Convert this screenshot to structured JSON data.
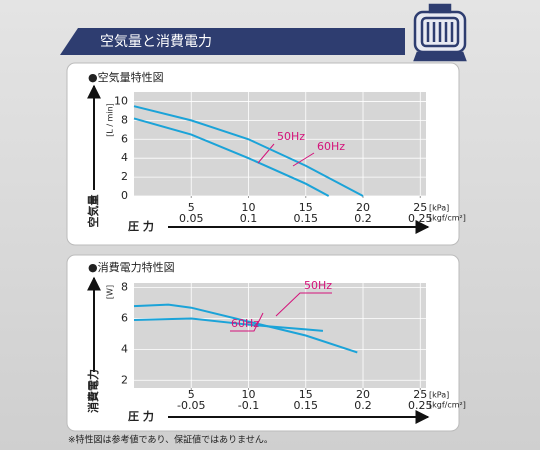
{
  "header": {
    "title": "空気量と消費電力"
  },
  "chart_data": [
    {
      "type": "line",
      "title": "●空気量特性図",
      "y_label": "空気量",
      "y_unit": "[L / min]",
      "x_label": "圧 力",
      "x_unit": "[kPa]",
      "x2_unit": "[kgf/cm²]",
      "xlim": [
        0,
        25.5
      ],
      "xticks": [
        5,
        10,
        15,
        20,
        25
      ],
      "x2lim": [
        0,
        0.255
      ],
      "x2ticks": [
        0.05,
        0.1,
        0.15,
        0.2,
        0.25
      ],
      "ylim": [
        0,
        11
      ],
      "yticks": [
        0,
        2,
        4,
        6,
        8,
        10
      ],
      "grid": true,
      "series": [
        {
          "name": "50Hz",
          "color": "#1ba3d8",
          "x": [
            0,
            5,
            10,
            15,
            17
          ],
          "values": [
            8.2,
            6.5,
            4,
            1.3,
            0
          ]
        },
        {
          "name": "60Hz",
          "color": "#1ba3d8",
          "x": [
            0,
            5,
            10,
            15,
            20
          ],
          "values": [
            9.5,
            8,
            6,
            3.2,
            0
          ]
        }
      ]
    },
    {
      "type": "line",
      "title": "●消費電力特性図",
      "y_label": "消費電力",
      "y_unit": "[W]",
      "x_label": "圧 力",
      "x_unit": "[kPa]",
      "x2_unit": "[kgf/cm²]",
      "xlim": [
        0,
        25.5
      ],
      "xticks": [
        5,
        10,
        15,
        20,
        25
      ],
      "x2lim": [
        0,
        0.255
      ],
      "x2ticks": [
        {
          "value": 0.05,
          "label": "-0.05"
        },
        {
          "value": 0.1,
          "label": "-0.1"
        },
        0.15,
        0.2,
        0.25
      ],
      "ylim": [
        1.5,
        8.3
      ],
      "yticks": [
        2,
        4,
        6,
        8
      ],
      "grid": true,
      "series": [
        {
          "name": "50Hz",
          "color": "#1ba3d8",
          "x": [
            0,
            5,
            10,
            15,
            16.5
          ],
          "values": [
            5.9,
            6.0,
            5.6,
            5.3,
            5.2
          ]
        },
        {
          "name": "60Hz",
          "color": "#1ba3d8",
          "x": [
            0,
            3,
            5,
            10,
            15,
            19.5
          ],
          "values": [
            6.8,
            6.9,
            6.7,
            5.8,
            4.9,
            3.8
          ]
        }
      ]
    }
  ],
  "footnote": "※特性図は参考値であり、保証値ではありません。"
}
